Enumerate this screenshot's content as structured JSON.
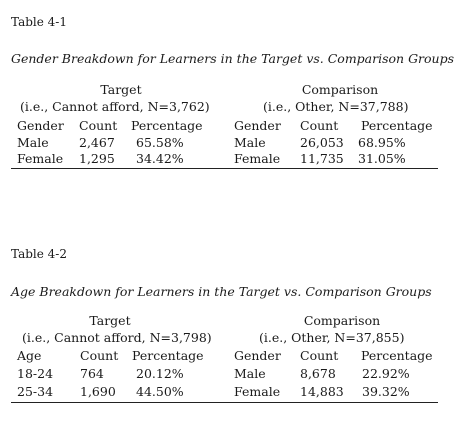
{
  "table1": {
    "number": "Table 4-1",
    "title": "Gender Breakdown for Learners in the Target vs. Comparison Groups",
    "target_header": "Target",
    "target_sub": "(i.e., Cannot afford, N=3,762)",
    "comparison_header": "Comparison",
    "comparison_sub": "(i.e., Other, N=37,788)",
    "target_columns": [
      "Gender",
      "Count",
      "Percentage"
    ],
    "comparison_columns": [
      "Gender",
      "Count",
      "Percentage"
    ],
    "target_rows": [
      [
        "Male",
        "2,467",
        "65.58%"
      ],
      [
        "Female",
        "1,295",
        "34.42%"
      ]
    ],
    "comparison_rows": [
      [
        "Male",
        "26,053",
        "68.95%"
      ],
      [
        "Female",
        "11,735",
        "31.05%"
      ]
    ]
  },
  "table2": {
    "number": "Table 4-2",
    "title": "Age Breakdown for Learners in the Target vs. Comparison Groups",
    "target_header": "Target",
    "target_sub": "(i.e., Cannot afford, N=3,798)",
    "comparison_header": "Comparison",
    "comparison_sub": "(i.e., Other, N=37,855)",
    "target_columns": [
      "Age",
      "Count",
      "Percentage"
    ],
    "comparison_columns": [
      "Gender",
      "Count",
      "Percentage"
    ],
    "target_rows": [
      [
        "18-24",
        "764",
        "20.12%"
      ],
      [
        "25-34",
        "1,690",
        "44.50%"
      ]
    ],
    "comparison_rows": [
      [
        "Male",
        "8,678",
        "22.92%"
      ],
      [
        "Female",
        "14,883",
        "39.32%"
      ]
    ]
  }
}
